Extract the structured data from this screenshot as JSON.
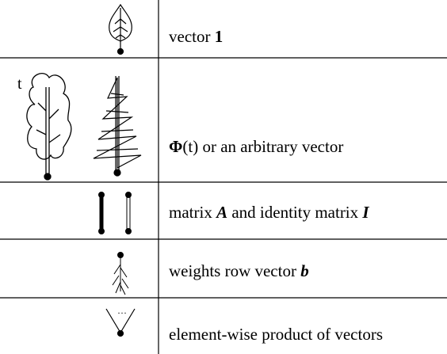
{
  "tree_label": "t",
  "dots_label": "···",
  "rows": [
    {
      "parts": [
        "vector ",
        "1"
      ]
    },
    {
      "parts": [
        "Φ",
        "(t) or an arbitrary vector"
      ]
    },
    {
      "parts": [
        "matrix ",
        "A",
        " and identity matrix ",
        "I"
      ]
    },
    {
      "parts": [
        "weights row vector ",
        "b"
      ]
    },
    {
      "parts": [
        "element-wise product of vectors"
      ]
    }
  ]
}
